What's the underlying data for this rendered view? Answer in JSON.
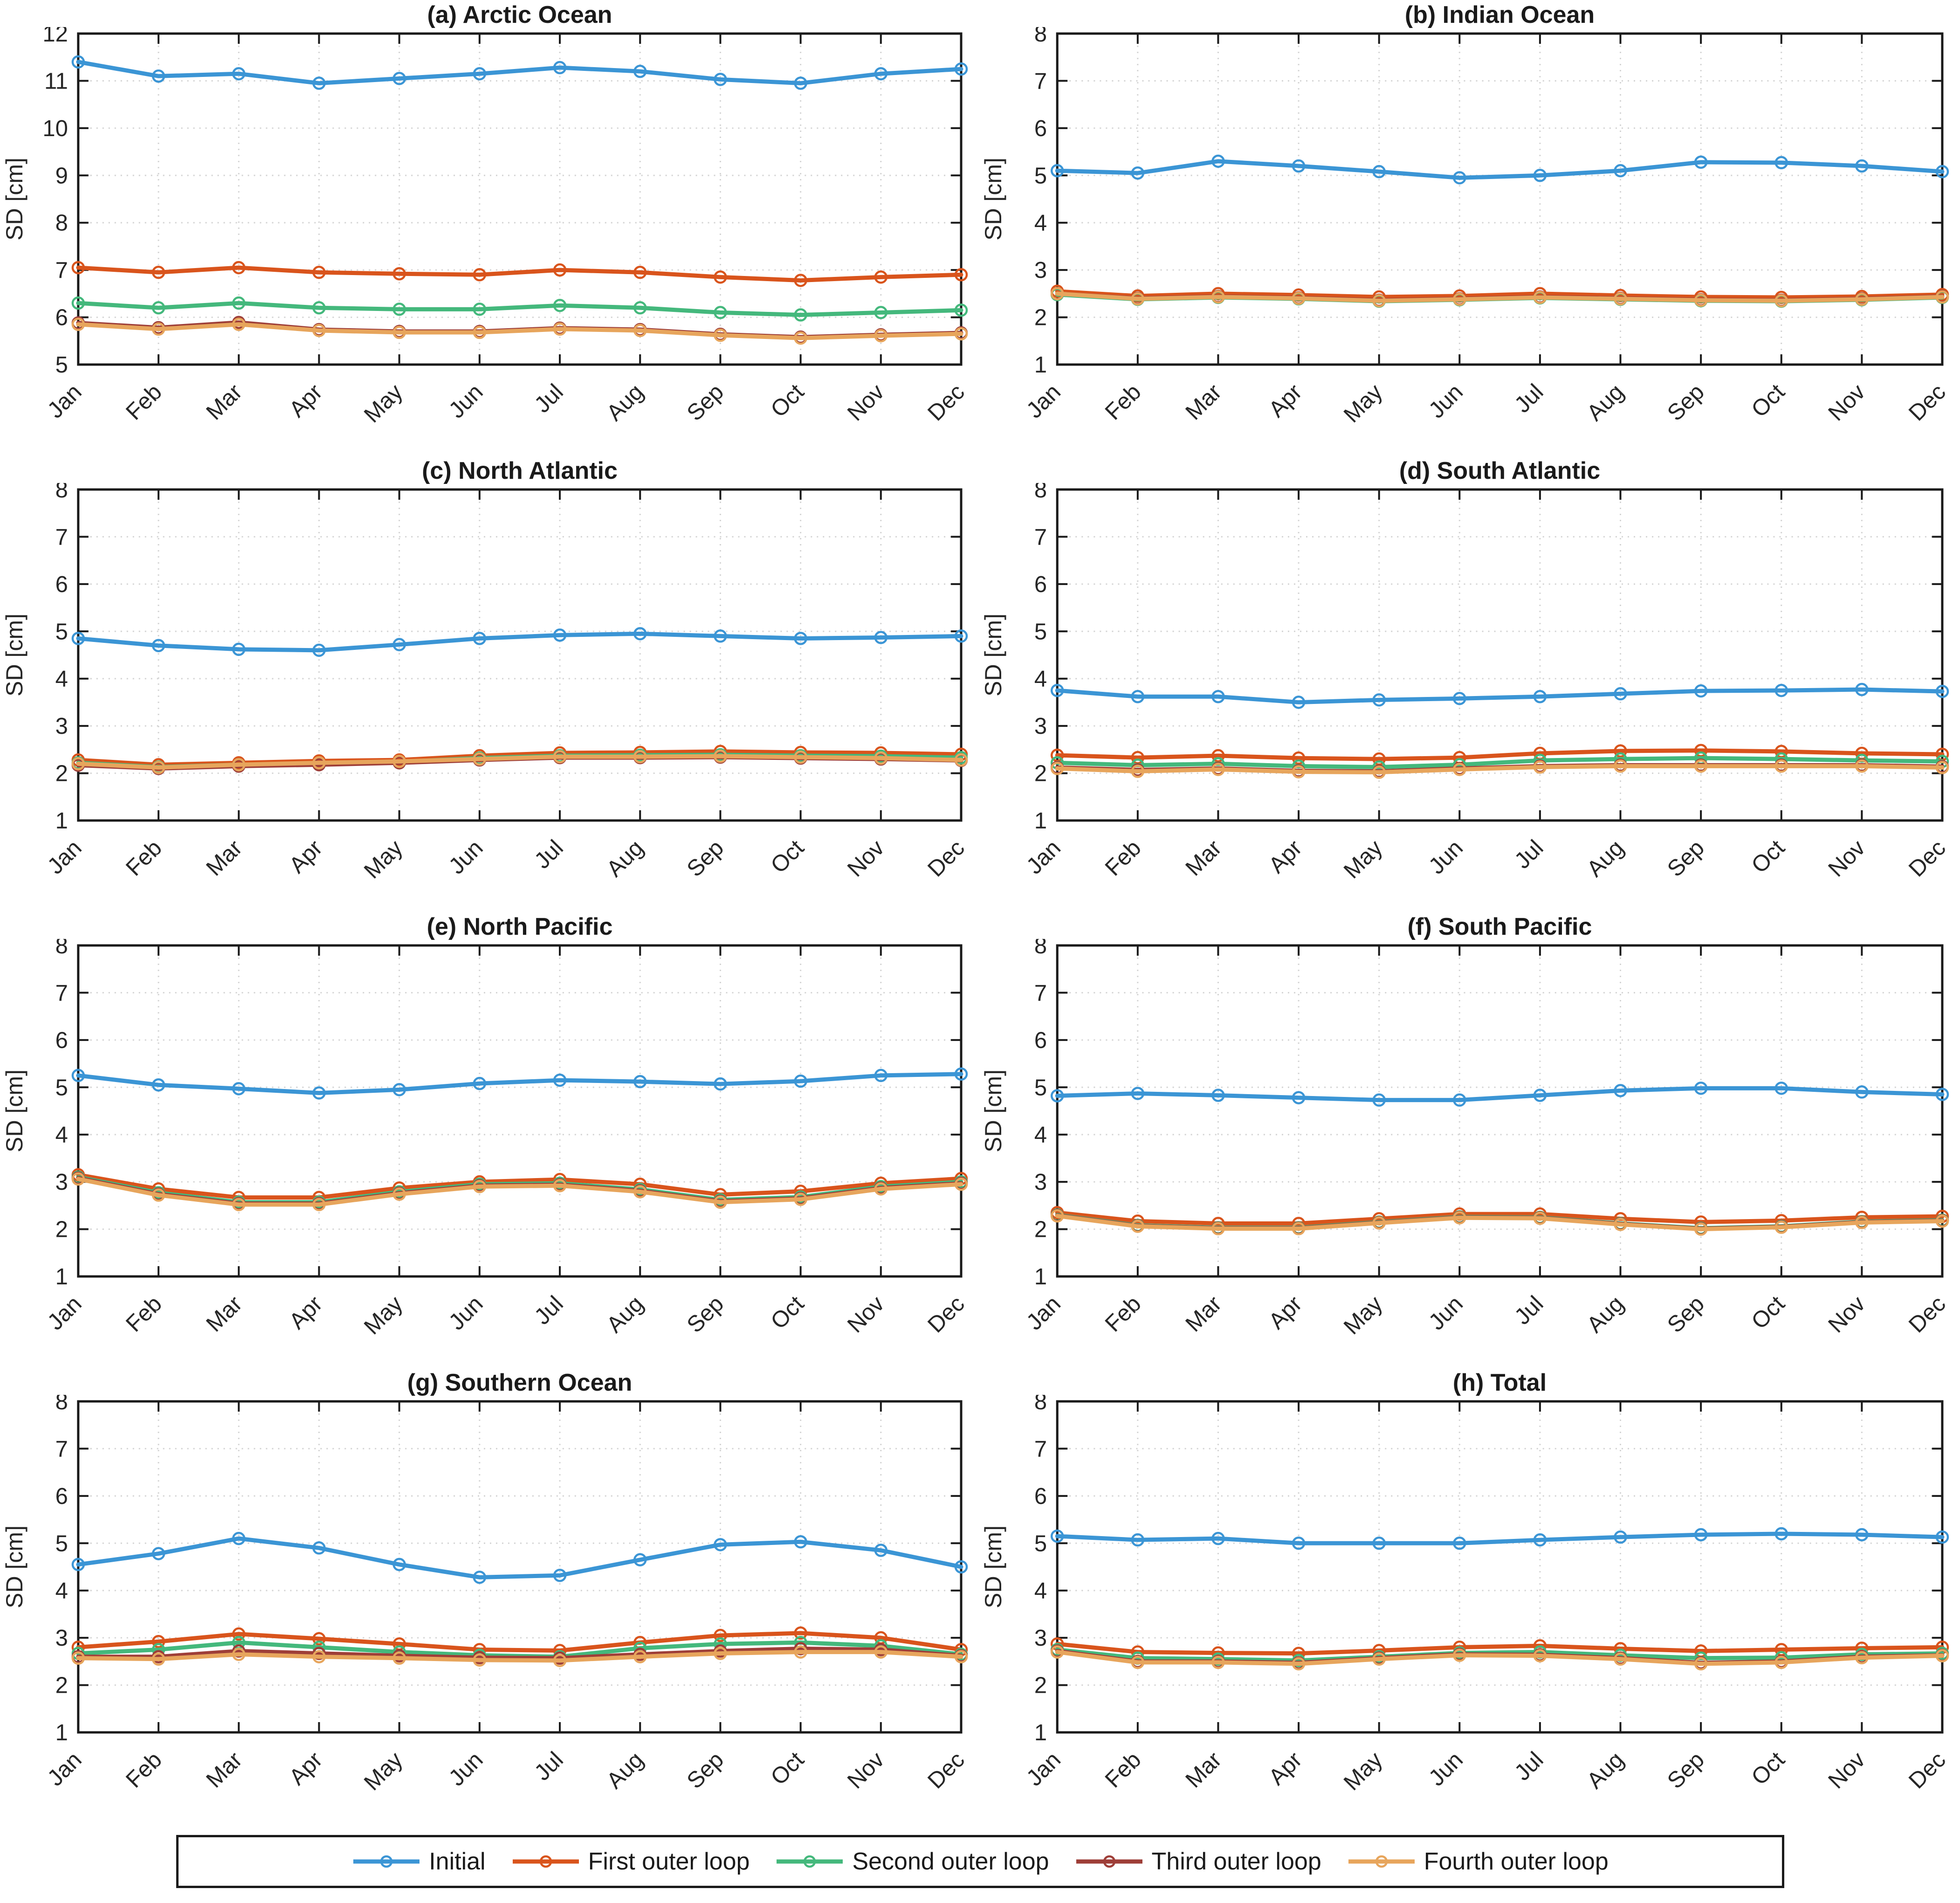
{
  "figure": {
    "ylabel": "SD [cm]",
    "months": [
      "Jan",
      "Feb",
      "Mar",
      "Apr",
      "May",
      "Jun",
      "Jul",
      "Aug",
      "Sep",
      "Oct",
      "Nov",
      "Dec"
    ],
    "legend": [
      {
        "label": "Initial",
        "color": "#3B95D5"
      },
      {
        "label": "First outer loop",
        "color": "#D9541C"
      },
      {
        "label": "Second outer loop",
        "color": "#44B87C"
      },
      {
        "label": "Third outer loop",
        "color": "#9E3E38"
      },
      {
        "label": "Fourth outer loop",
        "color": "#E7A55C"
      }
    ],
    "grid": "dotted",
    "legend_position": "bottom"
  },
  "chart_data": [
    {
      "key": "a",
      "title": "(a) Arctic Ocean",
      "type": "line",
      "xlabel": "",
      "ylabel": "SD [cm]",
      "ylim": [
        5,
        12
      ],
      "series": [
        {
          "name": "Initial",
          "values": [
            11.4,
            11.1,
            11.15,
            10.95,
            11.05,
            11.15,
            11.28,
            11.2,
            11.03,
            10.95,
            11.15,
            11.25
          ]
        },
        {
          "name": "First outer loop",
          "values": [
            7.05,
            6.95,
            7.05,
            6.95,
            6.92,
            6.9,
            7.0,
            6.95,
            6.85,
            6.78,
            6.85,
            6.9
          ]
        },
        {
          "name": "Second outer loop",
          "values": [
            6.3,
            6.2,
            6.3,
            6.2,
            6.17,
            6.17,
            6.25,
            6.2,
            6.1,
            6.05,
            6.1,
            6.15
          ]
        },
        {
          "name": "Third outer loop",
          "values": [
            5.88,
            5.78,
            5.89,
            5.74,
            5.7,
            5.7,
            5.77,
            5.74,
            5.64,
            5.58,
            5.63,
            5.67
          ]
        },
        {
          "name": "Fourth outer loop",
          "values": [
            5.85,
            5.75,
            5.85,
            5.72,
            5.68,
            5.68,
            5.75,
            5.72,
            5.62,
            5.56,
            5.61,
            5.65
          ]
        }
      ]
    },
    {
      "key": "b",
      "title": "(b) Indian Ocean",
      "type": "line",
      "xlabel": "",
      "ylabel": "SD [cm]",
      "ylim": [
        1,
        8
      ],
      "series": [
        {
          "name": "Initial",
          "values": [
            5.1,
            5.05,
            5.3,
            5.2,
            5.08,
            4.95,
            5.0,
            5.1,
            5.28,
            5.27,
            5.2,
            5.08
          ]
        },
        {
          "name": "First outer loop",
          "values": [
            2.55,
            2.45,
            2.5,
            2.47,
            2.43,
            2.45,
            2.5,
            2.46,
            2.43,
            2.42,
            2.44,
            2.48
          ]
        },
        {
          "name": "Second outer loop",
          "values": [
            2.48,
            2.38,
            2.42,
            2.39,
            2.34,
            2.37,
            2.41,
            2.38,
            2.35,
            2.34,
            2.37,
            2.42
          ]
        },
        {
          "name": "Third outer loop",
          "values": [
            2.5,
            2.4,
            2.44,
            2.41,
            2.36,
            2.39,
            2.43,
            2.4,
            2.37,
            2.36,
            2.39,
            2.44
          ]
        },
        {
          "name": "Fourth outer loop",
          "values": [
            2.5,
            2.39,
            2.43,
            2.4,
            2.35,
            2.38,
            2.42,
            2.39,
            2.36,
            2.35,
            2.38,
            2.43
          ]
        }
      ]
    },
    {
      "key": "c",
      "title": "(c) North Atlantic",
      "type": "line",
      "xlabel": "",
      "ylabel": "SD [cm]",
      "ylim": [
        1,
        8
      ],
      "series": [
        {
          "name": "Initial",
          "values": [
            4.85,
            4.7,
            4.62,
            4.6,
            4.72,
            4.85,
            4.92,
            4.95,
            4.9,
            4.85,
            4.87,
            4.9
          ]
        },
        {
          "name": "First outer loop",
          "values": [
            2.28,
            2.18,
            2.22,
            2.26,
            2.28,
            2.37,
            2.43,
            2.44,
            2.46,
            2.44,
            2.43,
            2.4
          ]
        },
        {
          "name": "Second outer loop",
          "values": [
            2.22,
            2.13,
            2.18,
            2.2,
            2.24,
            2.32,
            2.37,
            2.38,
            2.39,
            2.37,
            2.36,
            2.33
          ]
        },
        {
          "name": "Third outer loop",
          "values": [
            2.17,
            2.1,
            2.15,
            2.18,
            2.22,
            2.28,
            2.33,
            2.33,
            2.34,
            2.32,
            2.3,
            2.27
          ]
        },
        {
          "name": "Fourth outer loop",
          "values": [
            2.2,
            2.12,
            2.18,
            2.22,
            2.25,
            2.3,
            2.35,
            2.35,
            2.36,
            2.34,
            2.32,
            2.28
          ]
        }
      ]
    },
    {
      "key": "d",
      "title": "(d) South Atlantic",
      "type": "line",
      "xlabel": "",
      "ylabel": "SD [cm]",
      "ylim": [
        1,
        8
      ],
      "series": [
        {
          "name": "Initial",
          "values": [
            3.75,
            3.62,
            3.62,
            3.5,
            3.55,
            3.58,
            3.62,
            3.68,
            3.74,
            3.75,
            3.77,
            3.73
          ]
        },
        {
          "name": "First outer loop",
          "values": [
            2.38,
            2.33,
            2.37,
            2.32,
            2.3,
            2.33,
            2.42,
            2.47,
            2.48,
            2.46,
            2.42,
            2.4
          ]
        },
        {
          "name": "Second outer loop",
          "values": [
            2.22,
            2.17,
            2.2,
            2.15,
            2.13,
            2.18,
            2.27,
            2.3,
            2.32,
            2.3,
            2.27,
            2.25
          ]
        },
        {
          "name": "Third outer loop",
          "values": [
            2.12,
            2.07,
            2.1,
            2.05,
            2.04,
            2.1,
            2.15,
            2.17,
            2.17,
            2.17,
            2.17,
            2.14
          ]
        },
        {
          "name": "Fourth outer loop",
          "values": [
            2.1,
            2.04,
            2.08,
            2.03,
            2.02,
            2.08,
            2.13,
            2.15,
            2.15,
            2.15,
            2.15,
            2.12
          ]
        }
      ]
    },
    {
      "key": "e",
      "title": "(e) North Pacific",
      "type": "line",
      "xlabel": "",
      "ylabel": "SD [cm]",
      "ylim": [
        1,
        8
      ],
      "series": [
        {
          "name": "Initial",
          "values": [
            5.25,
            5.05,
            4.97,
            4.88,
            4.95,
            5.08,
            5.15,
            5.12,
            5.07,
            5.13,
            5.25,
            5.28
          ]
        },
        {
          "name": "First outer loop",
          "values": [
            3.15,
            2.85,
            2.67,
            2.67,
            2.87,
            3.0,
            3.05,
            2.95,
            2.73,
            2.8,
            2.97,
            3.07
          ]
        },
        {
          "name": "Second outer loop",
          "values": [
            3.1,
            2.77,
            2.57,
            2.57,
            2.79,
            2.95,
            2.97,
            2.84,
            2.62,
            2.68,
            2.9,
            3.0
          ]
        },
        {
          "name": "Third outer loop",
          "values": [
            3.08,
            2.74,
            2.54,
            2.54,
            2.76,
            2.92,
            2.94,
            2.81,
            2.59,
            2.65,
            2.87,
            2.97
          ]
        },
        {
          "name": "Fourth outer loop",
          "values": [
            3.06,
            2.72,
            2.52,
            2.52,
            2.74,
            2.9,
            2.92,
            2.79,
            2.57,
            2.63,
            2.85,
            2.95
          ]
        }
      ]
    },
    {
      "key": "f",
      "title": "(f) South Pacific",
      "type": "line",
      "xlabel": "",
      "ylabel": "SD [cm]",
      "ylim": [
        1,
        8
      ],
      "series": [
        {
          "name": "Initial",
          "values": [
            4.82,
            4.87,
            4.83,
            4.78,
            4.73,
            4.73,
            4.83,
            4.93,
            4.98,
            4.98,
            4.9,
            4.85
          ]
        },
        {
          "name": "First outer loop",
          "values": [
            2.35,
            2.17,
            2.12,
            2.12,
            2.22,
            2.32,
            2.32,
            2.22,
            2.15,
            2.18,
            2.25,
            2.27
          ]
        },
        {
          "name": "Second outer loop",
          "values": [
            2.3,
            2.08,
            2.03,
            2.03,
            2.15,
            2.26,
            2.25,
            2.12,
            2.02,
            2.06,
            2.16,
            2.19
          ]
        },
        {
          "name": "Third outer loop",
          "values": [
            2.29,
            2.07,
            2.02,
            2.02,
            2.14,
            2.25,
            2.24,
            2.11,
            2.01,
            2.05,
            2.15,
            2.18
          ]
        },
        {
          "name": "Fourth outer loop",
          "values": [
            2.28,
            2.06,
            2.01,
            2.01,
            2.13,
            2.24,
            2.23,
            2.1,
            2.0,
            2.04,
            2.14,
            2.17
          ]
        }
      ]
    },
    {
      "key": "g",
      "title": "(g) Southern Ocean",
      "type": "line",
      "xlabel": "",
      "ylabel": "SD [cm]",
      "ylim": [
        1,
        8
      ],
      "series": [
        {
          "name": "Initial",
          "values": [
            4.55,
            4.78,
            5.1,
            4.9,
            4.55,
            4.28,
            4.32,
            4.65,
            4.97,
            5.03,
            4.85,
            4.5
          ]
        },
        {
          "name": "First outer loop",
          "values": [
            2.8,
            2.92,
            3.08,
            2.98,
            2.87,
            2.75,
            2.73,
            2.9,
            3.05,
            3.1,
            3.0,
            2.75
          ]
        },
        {
          "name": "Second outer loop",
          "values": [
            2.67,
            2.75,
            2.9,
            2.8,
            2.7,
            2.63,
            2.6,
            2.78,
            2.87,
            2.9,
            2.83,
            2.65
          ]
        },
        {
          "name": "Third outer loop",
          "values": [
            2.6,
            2.6,
            2.72,
            2.67,
            2.62,
            2.58,
            2.57,
            2.65,
            2.72,
            2.77,
            2.75,
            2.62
          ]
        },
        {
          "name": "Fourth outer loop",
          "values": [
            2.57,
            2.55,
            2.65,
            2.6,
            2.57,
            2.53,
            2.52,
            2.6,
            2.67,
            2.7,
            2.7,
            2.6
          ]
        }
      ]
    },
    {
      "key": "h",
      "title": "(h) Total",
      "type": "line",
      "xlabel": "",
      "ylabel": "SD [cm]",
      "ylim": [
        1,
        8
      ],
      "series": [
        {
          "name": "Initial",
          "values": [
            5.15,
            5.07,
            5.1,
            5.0,
            5.0,
            5.0,
            5.07,
            5.13,
            5.18,
            5.2,
            5.18,
            5.13
          ]
        },
        {
          "name": "First outer loop",
          "values": [
            2.87,
            2.7,
            2.68,
            2.67,
            2.73,
            2.8,
            2.83,
            2.77,
            2.72,
            2.75,
            2.78,
            2.8
          ]
        },
        {
          "name": "Second outer loop",
          "values": [
            2.75,
            2.57,
            2.55,
            2.52,
            2.6,
            2.68,
            2.7,
            2.63,
            2.57,
            2.58,
            2.65,
            2.67
          ]
        },
        {
          "name": "Third outer loop",
          "values": [
            2.72,
            2.5,
            2.5,
            2.47,
            2.57,
            2.65,
            2.64,
            2.57,
            2.47,
            2.5,
            2.6,
            2.63
          ]
        },
        {
          "name": "Fourth outer loop",
          "values": [
            2.7,
            2.48,
            2.48,
            2.45,
            2.55,
            2.63,
            2.62,
            2.55,
            2.45,
            2.48,
            2.58,
            2.62
          ]
        }
      ]
    }
  ]
}
